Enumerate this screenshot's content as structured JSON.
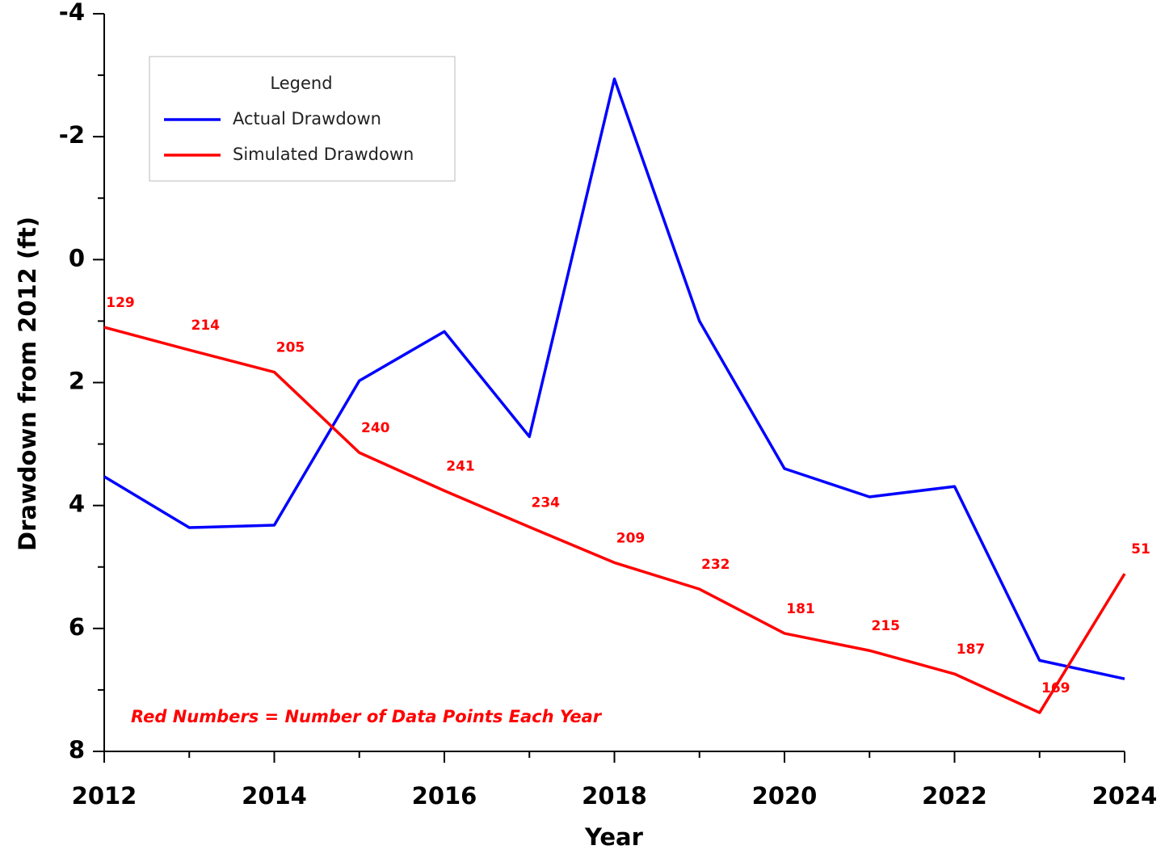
{
  "chart_data": {
    "type": "line",
    "xlabel": "Year",
    "ylabel": "Drawdown from 2012 (ft)",
    "x": [
      2012,
      2013,
      2014,
      2015,
      2016,
      2017,
      2018,
      2019,
      2020,
      2021,
      2022,
      2023,
      2024
    ],
    "series": [
      {
        "name": "Actual Drawdown",
        "color": "#0000ff",
        "values": [
          3.53,
          4.36,
          4.32,
          1.97,
          1.17,
          2.88,
          -2.94,
          1.0,
          3.4,
          3.86,
          3.69,
          6.52,
          6.82
        ]
      },
      {
        "name": "Simulated Drawdown",
        "color": "#ff0000",
        "values": [
          1.1,
          1.47,
          1.83,
          3.14,
          3.76,
          4.35,
          4.93,
          5.36,
          6.08,
          6.36,
          6.74,
          7.37,
          5.11
        ]
      }
    ],
    "data_point_counts": [
      129,
      214,
      205,
      240,
      241,
      234,
      209,
      232,
      181,
      215,
      187,
      169,
      51
    ],
    "data_point_counts_color": "#ff0000",
    "annotation": "Red Numbers = Number of Data Points Each Year",
    "legend_title": "Legend",
    "legend_position": "upper left",
    "xlim": [
      2012,
      2024
    ],
    "xticks": [
      2012,
      2014,
      2016,
      2018,
      2020,
      2022,
      2024
    ],
    "xticks_minor": [
      2013,
      2015,
      2017,
      2019,
      2021,
      2023
    ],
    "ylim": [
      -4,
      8
    ],
    "y_reversed": true,
    "yticks": [
      -4,
      -2,
      0,
      2,
      4,
      6,
      8
    ],
    "yticks_minor": [
      -3,
      -1,
      1,
      3,
      5,
      7
    ],
    "grid": false
  }
}
